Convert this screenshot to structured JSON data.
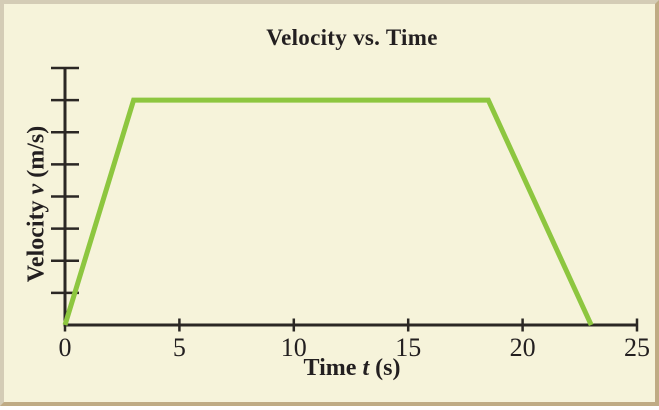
{
  "labels": {
    "title": "Velocity vs. Time",
    "xlabel": {
      "prefix": "Time ",
      "symbol": "t",
      "suffix": " (s)",
      "full": "Time t (s)"
    },
    "ylabel": {
      "prefix": "Velocity ",
      "symbol": "v",
      "suffix": " (m/s)",
      "full": "Velocity v (m/s)"
    }
  },
  "colors": {
    "line": "#8dc63f",
    "axis": "#2b2724",
    "text": "#231f20",
    "background": "#f6f3da",
    "frame_light": "#d4ccb6",
    "frame_dark": "#bfab84"
  },
  "chart_data": {
    "type": "line",
    "title": "Velocity vs. Time",
    "xlabel": "Time t (s)",
    "ylabel": "Velocity v (m/s)",
    "x_ticks": [
      0,
      5,
      10,
      15,
      20,
      25
    ],
    "x_tick_labels": [
      "0",
      "5",
      "10",
      "15",
      "20",
      "25"
    ],
    "xlim": [
      0,
      25
    ],
    "ylim": [
      0,
      8
    ],
    "y_tick_values": [
      1,
      2,
      3,
      4,
      5,
      6,
      7,
      8
    ],
    "y_ticks_labeled": false,
    "y_unit": "tick intervals (y-axis ticks are unlabeled)",
    "grid": false,
    "legend": false,
    "series": [
      {
        "name": "velocity",
        "color": "#8dc63f",
        "points": [
          [
            0,
            0
          ],
          [
            3,
            7
          ],
          [
            18.5,
            7
          ],
          [
            23,
            0
          ]
        ]
      }
    ],
    "shape_note": "trapezoid: rises 0 to plateau at 7th of 8 ticks by t=3, constant until t=18.5, falls to 0 at t=23"
  }
}
